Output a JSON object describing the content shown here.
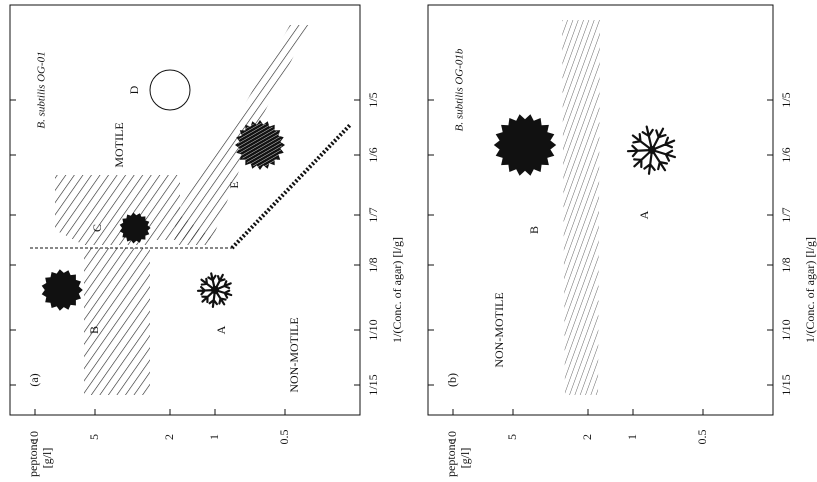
{
  "axes": {
    "y_title": [
      "peptone",
      "[g/l]"
    ],
    "y_ticks": [
      "10",
      "5",
      "2",
      "1",
      "0.5"
    ],
    "x_title": "1/(Conc. of agar) [l/g]",
    "x_ticks": [
      "1/15",
      "1/10",
      "1/8",
      "1/7",
      "1/6",
      "1/5"
    ]
  },
  "panels": [
    {
      "label": "(a)",
      "strain": "B. subtilis OG-01",
      "regions": [
        "MOTILE",
        "NON-MOTILE"
      ],
      "patterns": [
        "A",
        "B",
        "C",
        "D",
        "E"
      ]
    },
    {
      "label": "(b)",
      "strain": "B. subtilis OG-01b",
      "regions": [
        "NON-MOTILE"
      ],
      "patterns": [
        "A",
        "B"
      ]
    }
  ]
}
